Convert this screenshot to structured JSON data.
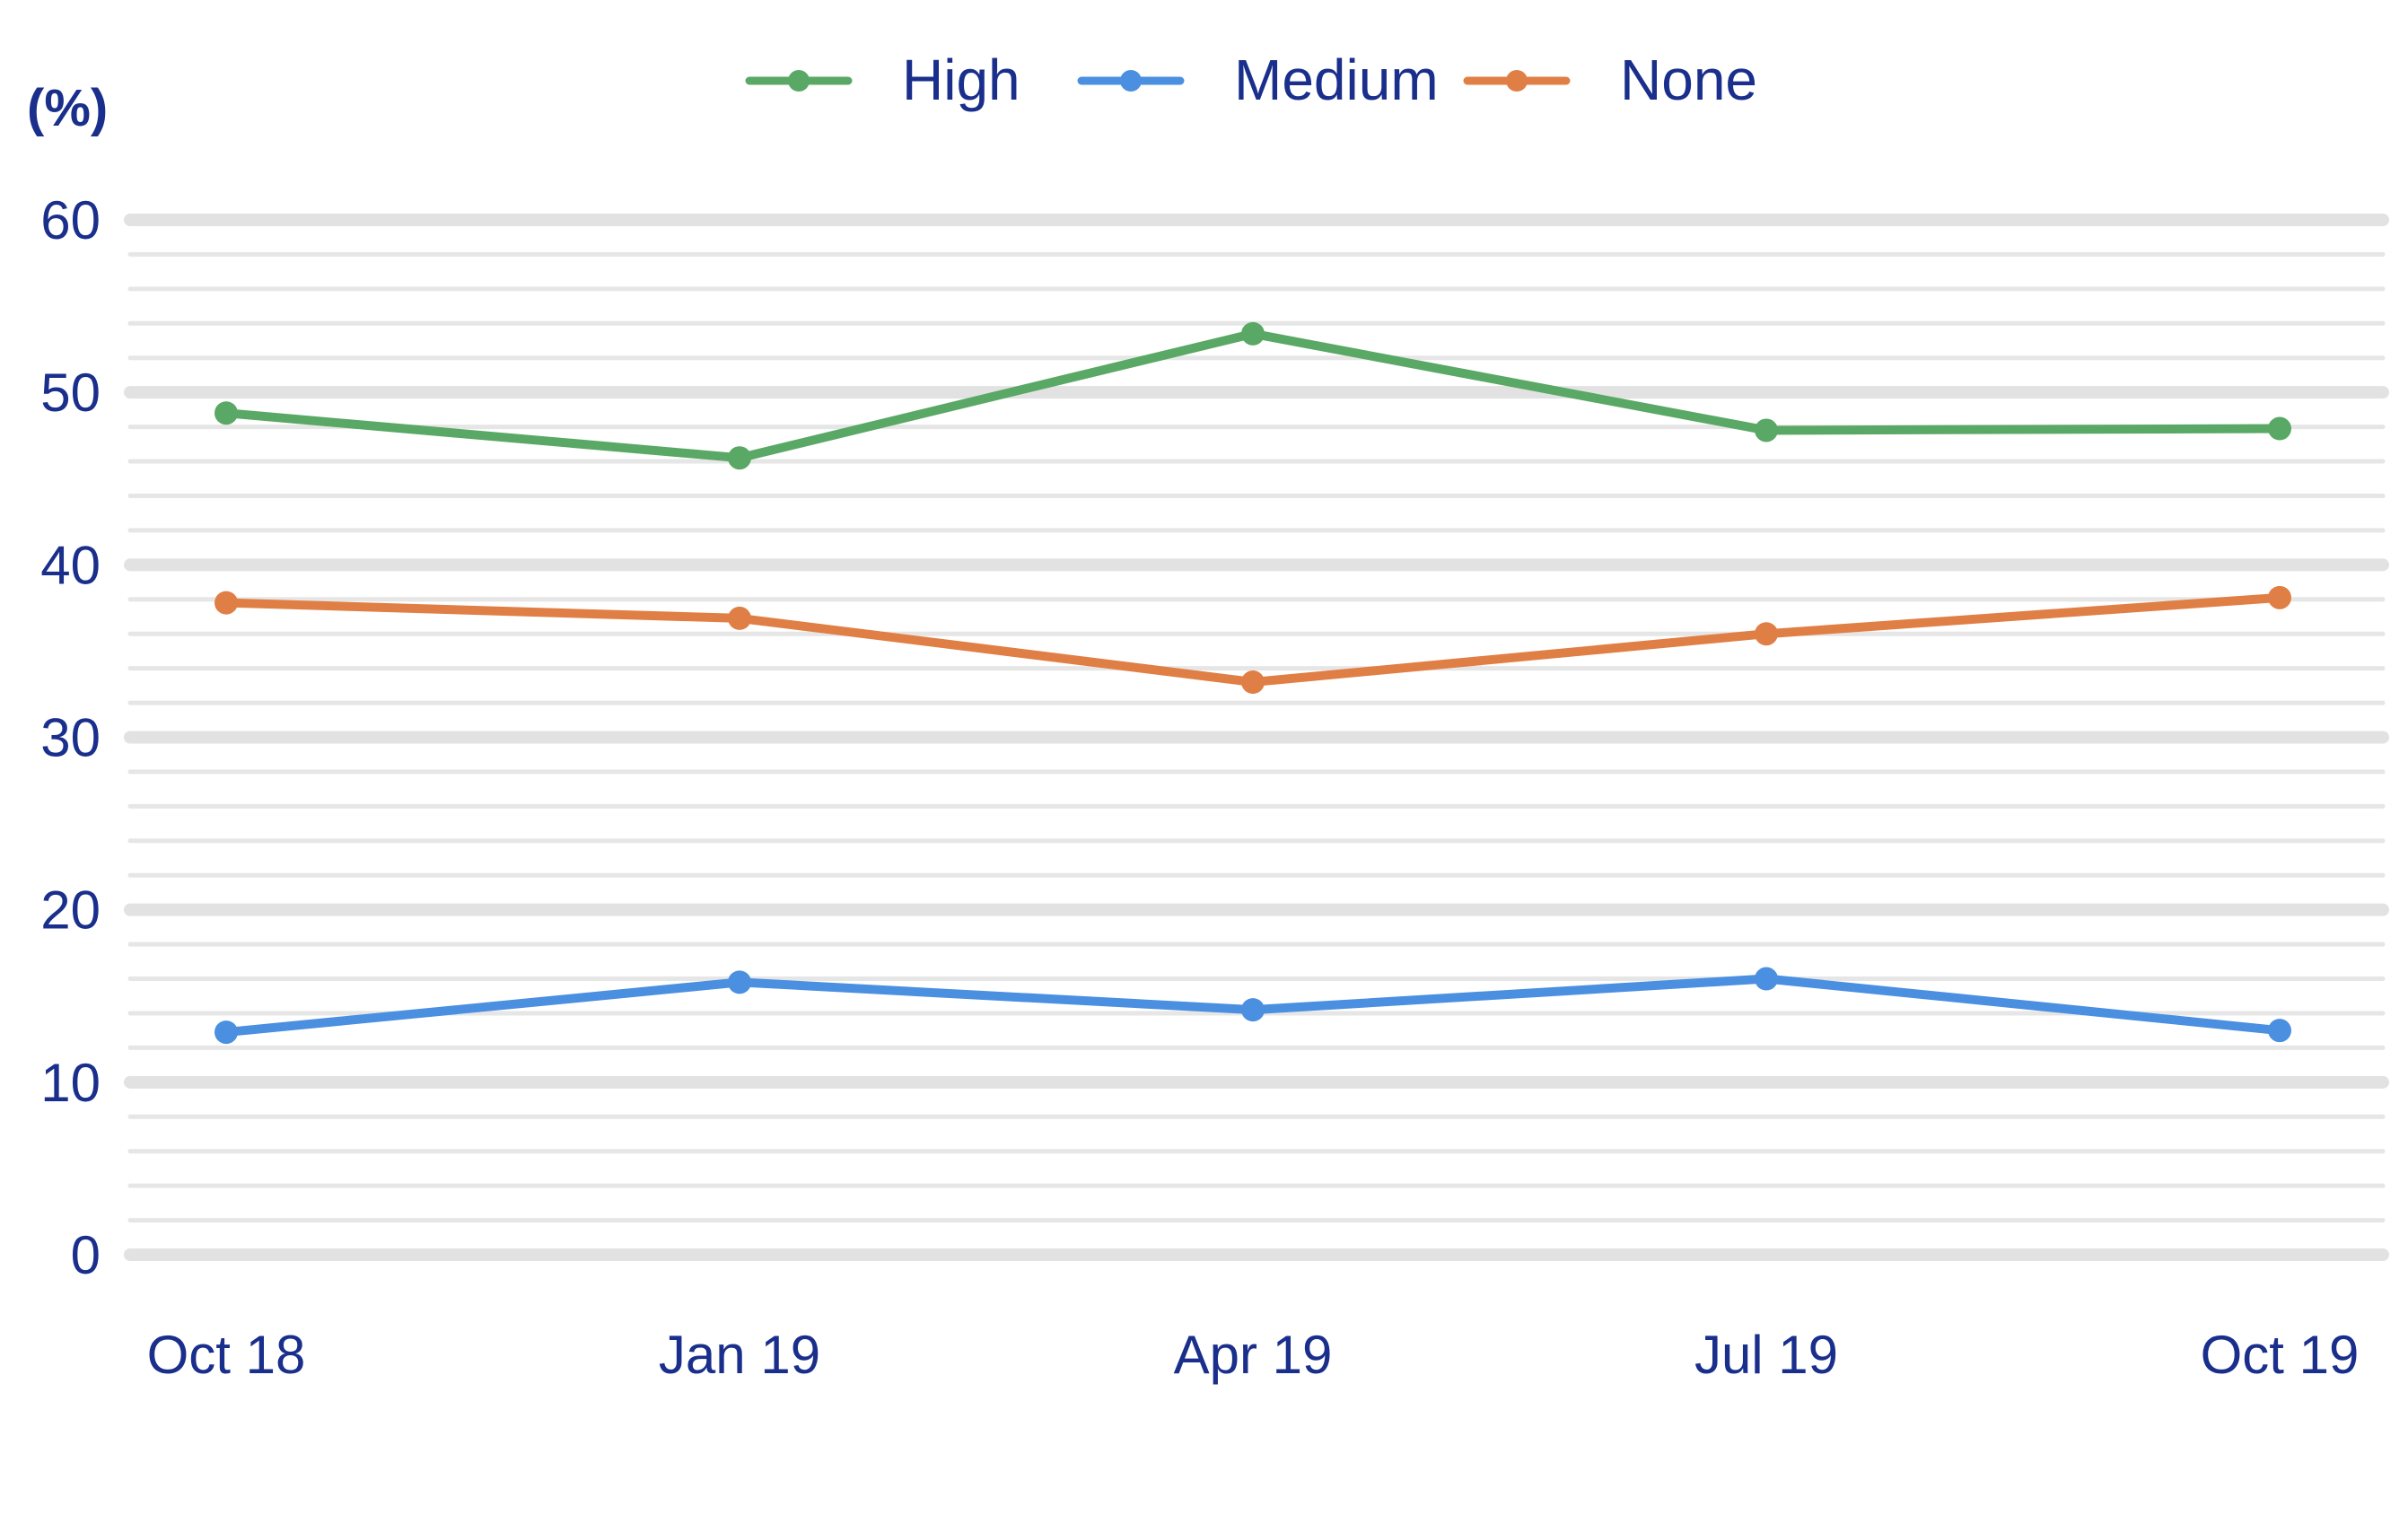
{
  "chart_data": {
    "type": "line",
    "title": "",
    "unit_label": "(%)",
    "xlabel": "",
    "ylabel": "",
    "categories": [
      "Oct 18",
      "Jan 19",
      "Apr 19",
      "Jul 19",
      "Oct 19"
    ],
    "ylim": [
      0,
      60
    ],
    "yticks": [
      "0",
      "10",
      "20",
      "30",
      "40",
      "50",
      "60"
    ],
    "grid": true,
    "legend_position": "top-center",
    "series": [
      {
        "name": "High",
        "color": "#5aa865",
        "values": [
          48.8,
          46.2,
          53.4,
          47.8,
          47.9
        ]
      },
      {
        "name": "Medium",
        "color": "#4a8fe0",
        "values": [
          12.9,
          15.8,
          14.2,
          16.0,
          13.0
        ]
      },
      {
        "name": "None",
        "color": "#e07f45",
        "values": [
          37.8,
          36.9,
          33.2,
          36.0,
          38.1
        ]
      }
    ],
    "text_color": "#1a2f8c"
  }
}
